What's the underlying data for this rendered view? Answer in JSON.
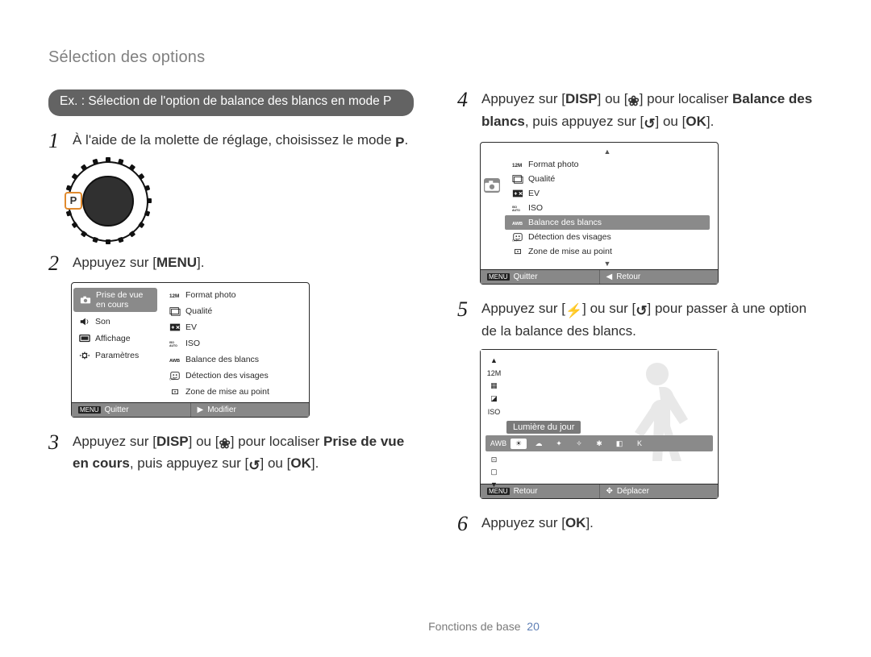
{
  "page_title": "Sélection des options",
  "pill": "Ex. : Sélection de l'option de balance des blancs en mode P",
  "steps": {
    "s1": {
      "num": "1",
      "text_a": "À l'aide de la molette de réglage, choisissez le mode ",
      "p_icon": "P",
      "text_b": "."
    },
    "s2": {
      "num": "2",
      "text_a": "Appuyez sur [",
      "menu": "MENU",
      "text_b": "]."
    },
    "s3": {
      "num": "3",
      "text_a": "Appuyez sur [",
      "disp": "DISP",
      "mid": "] ou [",
      "flower": "❀",
      "mid2": "] pour localiser ",
      "bold": "Prise de vue en cours",
      "mid3": ", puis appuyez sur [",
      "timer": "↺",
      "mid4": "] ou [",
      "ok": "OK",
      "text_b": "]."
    },
    "s4": {
      "num": "4",
      "text_a": "Appuyez sur [",
      "disp": "DISP",
      "mid": "] ou [",
      "flower": "❀",
      "mid2": "] pour localiser ",
      "bold": "Balance des blancs",
      "mid3": ", puis appuyez sur [",
      "timer": "↺",
      "mid4": "] ou [",
      "ok": "OK",
      "text_b": "]."
    },
    "s5": {
      "num": "5",
      "text_a": "Appuyez sur [",
      "flash": "⚡",
      "mid": "] ou sur [",
      "timer": "↺",
      "mid2": "] pour passer à une option de la balance des blancs."
    },
    "s6": {
      "num": "6",
      "text_a": "Appuyez sur [",
      "ok": "OK",
      "text_b": "]."
    }
  },
  "dial": {
    "highlight": "P"
  },
  "screenA": {
    "tabs": [
      {
        "icon": "camera",
        "label": "Prise de vue en cours",
        "sel": true
      },
      {
        "icon": "sound",
        "label": "Son"
      },
      {
        "icon": "display",
        "label": "Affichage"
      },
      {
        "icon": "gear",
        "label": "Paramètres"
      }
    ],
    "menu": [
      {
        "icon": "12m",
        "label": "Format photo"
      },
      {
        "icon": "qual",
        "label": "Qualité"
      },
      {
        "icon": "ev",
        "label": "EV"
      },
      {
        "icon": "iso",
        "label": "ISO"
      },
      {
        "icon": "wb",
        "label": "Balance des blancs"
      },
      {
        "icon": "face",
        "label": "Détection des visages"
      },
      {
        "icon": "af",
        "label": "Zone de mise au point"
      }
    ],
    "footer_left_key": "MENU",
    "footer_left": "Quitter",
    "footer_right_arrow": "▶",
    "footer_right": "Modifier"
  },
  "screenB": {
    "menu": [
      {
        "icon": "12m",
        "label": "Format photo"
      },
      {
        "icon": "qual",
        "label": "Qualité"
      },
      {
        "icon": "ev",
        "label": "EV"
      },
      {
        "icon": "iso",
        "label": "ISO"
      },
      {
        "icon": "wb",
        "label": "Balance des blancs",
        "sel": true
      },
      {
        "icon": "face",
        "label": "Détection des visages"
      },
      {
        "icon": "af",
        "label": "Zone de mise au point"
      }
    ],
    "footer_left_key": "MENU",
    "footer_left": "Quitter",
    "footer_right_arrow": "◀",
    "footer_right": "Retour"
  },
  "screenC": {
    "vstrip_top": [
      "▲",
      "12M",
      "▦",
      "◪",
      "ISO"
    ],
    "label": "Lumière du jour",
    "hstrip": [
      "AWB",
      "☀",
      "☁",
      "✦",
      "✧",
      "✱",
      "◧",
      "K"
    ],
    "hstrip_sel_index": 1,
    "vstrip_bottom": [
      "⊡",
      "▢",
      "▼"
    ],
    "footer_left_key": "MENU",
    "footer_left": "Retour",
    "footer_right_icon": "✥",
    "footer_right": "Déplacer"
  },
  "footer": {
    "text": "Fonctions de base",
    "page": "20"
  },
  "colors": {
    "title_gray": "#808080",
    "pill_bg": "#636363",
    "body_text": "#313131",
    "dial_highlight": "#e08a2e",
    "screen_sel_bg": "#8a8a8a",
    "footer_page": "#5e7fb5"
  }
}
